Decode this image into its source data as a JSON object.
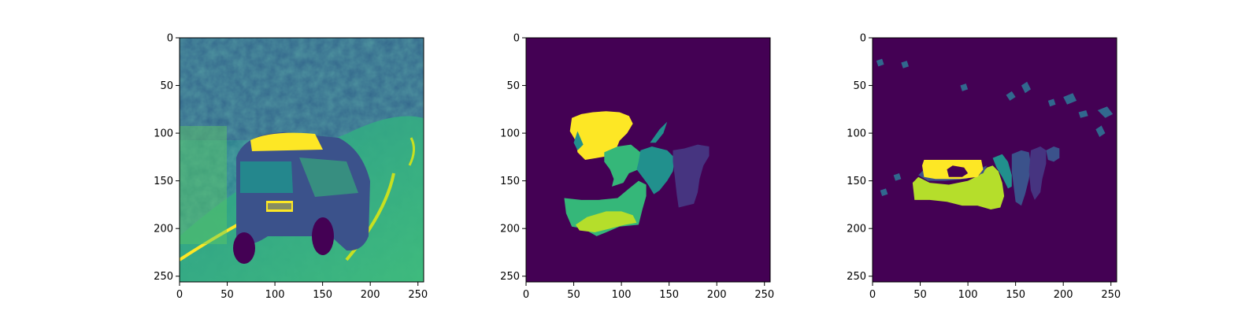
{
  "figure": {
    "background": "#ffffff",
    "colormap": "viridis",
    "colors": {
      "dark_purple": "#440154",
      "indigo": "#3b528b",
      "purple_blue": "#463480",
      "blue": "#31688e",
      "teal": "#21908d",
      "green": "#35b779",
      "light_green": "#90d743",
      "yellow_green": "#b5de2b",
      "yellow": "#fde725"
    }
  },
  "chart_data": [
    {
      "type": "heatmap",
      "name": "grayscale-car-image",
      "content": "viridis-colored grayscale photo of a car on a curving road",
      "xlim": [
        0,
        256
      ],
      "ylim": [
        256,
        0
      ],
      "xticks": [
        0,
        50,
        100,
        150,
        200,
        250
      ],
      "yticks": [
        0,
        50,
        100,
        150,
        200,
        250
      ],
      "xtick_labels": [
        "0",
        "50",
        "100",
        "150",
        "200",
        "250"
      ],
      "ytick_labels": [
        "0",
        "50",
        "100",
        "150",
        "200",
        "250"
      ],
      "title": "",
      "xlabel": "",
      "ylabel": "",
      "grid": false
    },
    {
      "type": "heatmap",
      "name": "segmentation-mask-a",
      "content": "label map with several colored segments on dark purple background",
      "xlim": [
        0,
        256
      ],
      "ylim": [
        256,
        0
      ],
      "xticks": [
        0,
        50,
        100,
        150,
        200,
        250
      ],
      "yticks": [
        0,
        50,
        100,
        150,
        200,
        250
      ],
      "xtick_labels": [
        "0",
        "50",
        "100",
        "150",
        "200",
        "250"
      ],
      "ytick_labels": [
        "0",
        "50",
        "100",
        "150",
        "200",
        "250"
      ],
      "title": "",
      "xlabel": "",
      "ylabel": "",
      "grid": false,
      "segments": [
        {
          "color": "#fde725",
          "points": [
            [
              48,
              84
            ],
            [
              58,
              80
            ],
            [
              70,
              78
            ],
            [
              84,
              77
            ],
            [
              98,
              78
            ],
            [
              108,
              82
            ],
            [
              112,
              90
            ],
            [
              106,
              100
            ],
            [
              98,
              108
            ],
            [
              94,
              118
            ],
            [
              86,
              124
            ],
            [
              74,
              126
            ],
            [
              62,
              128
            ],
            [
              54,
              120
            ],
            [
              52,
              108
            ],
            [
              46,
              98
            ]
          ]
        },
        {
          "color": "#21908d",
          "points": [
            [
              54,
              98
            ],
            [
              50,
              110
            ],
            [
              54,
              118
            ],
            [
              60,
              112
            ]
          ]
        },
        {
          "color": "#35b779",
          "points": [
            [
              82,
              120
            ],
            [
              96,
              114
            ],
            [
              110,
              112
            ],
            [
              120,
              120
            ],
            [
              124,
              130
            ],
            [
              118,
              138
            ],
            [
              108,
              142
            ],
            [
              102,
              152
            ],
            [
              90,
              156
            ],
            [
              92,
              148
            ],
            [
              88,
              138
            ],
            [
              82,
              130
            ]
          ]
        },
        {
          "color": "#21908d",
          "points": [
            [
              120,
              118
            ],
            [
              132,
              114
            ],
            [
              148,
              118
            ],
            [
              156,
              126
            ],
            [
              154,
              140
            ],
            [
              148,
              150
            ],
            [
              140,
              160
            ],
            [
              134,
              164
            ],
            [
              128,
              154
            ],
            [
              122,
              146
            ],
            [
              116,
              138
            ],
            [
              118,
              130
            ]
          ]
        },
        {
          "color": "#463480",
          "points": [
            [
              154,
              118
            ],
            [
              166,
              116
            ],
            [
              180,
              112
            ],
            [
              192,
              114
            ],
            [
              192,
              124
            ],
            [
              186,
              134
            ],
            [
              182,
              148
            ],
            [
              180,
              162
            ],
            [
              176,
              174
            ],
            [
              168,
              176
            ],
            [
              160,
              178
            ],
            [
              158,
              164
            ],
            [
              156,
              146
            ],
            [
              154,
              130
            ]
          ]
        },
        {
          "color": "#35b779",
          "points": [
            [
              40,
              168
            ],
            [
              58,
              170
            ],
            [
              76,
              170
            ],
            [
              96,
              168
            ],
            [
              108,
              158
            ],
            [
              118,
              150
            ],
            [
              126,
              154
            ],
            [
              126,
              166
            ],
            [
              122,
              180
            ],
            [
              118,
              196
            ],
            [
              98,
              198
            ],
            [
              84,
              204
            ],
            [
              74,
              208
            ],
            [
              60,
              200
            ],
            [
              48,
              198
            ],
            [
              42,
              184
            ]
          ]
        },
        {
          "color": "#b5de2b",
          "points": [
            [
              52,
              196
            ],
            [
              64,
              188
            ],
            [
              84,
              182
            ],
            [
              100,
              182
            ],
            [
              112,
              186
            ],
            [
              116,
              194
            ],
            [
              104,
              196
            ],
            [
              88,
              200
            ],
            [
              72,
              204
            ],
            [
              56,
              202
            ]
          ]
        },
        {
          "color": "#21908d",
          "points": [
            [
              130,
              110
            ],
            [
              140,
              96
            ],
            [
              148,
              88
            ],
            [
              144,
              100
            ],
            [
              136,
              110
            ]
          ]
        }
      ]
    },
    {
      "type": "heatmap",
      "name": "segmentation-mask-b",
      "content": "label map with yellow, green and blue segments plus scattered small blobs",
      "xlim": [
        0,
        256
      ],
      "ylim": [
        256,
        0
      ],
      "xticks": [
        0,
        50,
        100,
        150,
        200,
        250
      ],
      "yticks": [
        0,
        50,
        100,
        150,
        200,
        250
      ],
      "xtick_labels": [
        "0",
        "50",
        "100",
        "150",
        "200",
        "250"
      ],
      "ytick_labels": [
        "0",
        "50",
        "100",
        "150",
        "200",
        "250"
      ],
      "title": "",
      "xlabel": "",
      "ylabel": "",
      "grid": false,
      "segments": [
        {
          "color": "#b5de2b",
          "points": [
            [
              42,
              152
            ],
            [
              48,
              146
            ],
            [
              60,
              152
            ],
            [
              80,
              154
            ],
            [
              100,
              150
            ],
            [
              112,
              144
            ],
            [
              120,
              136
            ],
            [
              126,
              134
            ],
            [
              132,
              140
            ],
            [
              136,
              152
            ],
            [
              138,
              166
            ],
            [
              134,
              178
            ],
            [
              124,
              180
            ],
            [
              110,
              176
            ],
            [
              94,
              176
            ],
            [
              78,
              172
            ],
            [
              60,
              170
            ],
            [
              44,
              170
            ]
          ]
        },
        {
          "color": "#3b528b",
          "points": [
            [
              48,
              144
            ],
            [
              54,
              138
            ],
            [
              66,
              140
            ],
            [
              90,
              142
            ],
            [
              110,
              138
            ],
            [
              120,
              134
            ],
            [
              116,
              142
            ],
            [
              98,
              148
            ],
            [
              76,
              150
            ],
            [
              58,
              150
            ]
          ]
        },
        {
          "color": "#fde725",
          "points": [
            [
              52,
              134
            ],
            [
              54,
              128
            ],
            [
              70,
              128
            ],
            [
              100,
              128
            ],
            [
              114,
              128
            ],
            [
              116,
              138
            ],
            [
              110,
              146
            ],
            [
              92,
              148
            ],
            [
              66,
              148
            ],
            [
              54,
              146
            ]
          ]
        },
        {
          "color": "#440154",
          "points": [
            [
              78,
              138
            ],
            [
              84,
              134
            ],
            [
              96,
              136
            ],
            [
              100,
              142
            ],
            [
              94,
              146
            ],
            [
              80,
              146
            ]
          ]
        },
        {
          "color": "#21908d",
          "points": [
            [
              126,
              126
            ],
            [
              136,
              122
            ],
            [
              142,
              130
            ],
            [
              146,
              144
            ],
            [
              146,
              156
            ],
            [
              142,
              158
            ],
            [
              136,
              146
            ],
            [
              130,
              136
            ]
          ]
        },
        {
          "color": "#3b528b",
          "points": [
            [
              146,
              122
            ],
            [
              156,
              118
            ],
            [
              164,
              120
            ],
            [
              166,
              132
            ],
            [
              164,
              148
            ],
            [
              160,
              164
            ],
            [
              156,
              176
            ],
            [
              150,
              172
            ],
            [
              148,
              156
            ],
            [
              146,
              140
            ]
          ]
        },
        {
          "color": "#463480",
          "points": [
            [
              166,
              118
            ],
            [
              176,
              114
            ],
            [
              182,
              118
            ],
            [
              182,
              132
            ],
            [
              178,
              148
            ],
            [
              176,
              162
            ],
            [
              170,
              170
            ],
            [
              166,
              160
            ],
            [
              164,
              140
            ]
          ]
        },
        {
          "color": "#3b528b",
          "points": [
            [
              182,
              118
            ],
            [
              190,
              114
            ],
            [
              196,
              116
            ],
            [
              196,
              126
            ],
            [
              190,
              130
            ],
            [
              184,
              128
            ]
          ]
        },
        {
          "color": "#31688e",
          "points": [
            [
              156,
              50
            ],
            [
              162,
              46
            ],
            [
              166,
              54
            ],
            [
              160,
              58
            ]
          ]
        },
        {
          "color": "#31688e",
          "points": [
            [
              234,
              96
            ],
            [
              240,
              92
            ],
            [
              244,
              100
            ],
            [
              238,
              104
            ]
          ]
        },
        {
          "color": "#31688e",
          "points": [
            [
              236,
              76
            ],
            [
              246,
              72
            ],
            [
              252,
              80
            ],
            [
              244,
              84
            ]
          ]
        },
        {
          "color": "#31688e",
          "points": [
            [
              200,
              62
            ],
            [
              210,
              58
            ],
            [
              214,
              66
            ],
            [
              204,
              70
            ]
          ]
        },
        {
          "color": "#31688e",
          "points": [
            [
              92,
              50
            ],
            [
              98,
              48
            ],
            [
              100,
              54
            ],
            [
              94,
              56
            ]
          ]
        },
        {
          "color": "#31688e",
          "points": [
            [
              140,
              60
            ],
            [
              146,
              56
            ],
            [
              150,
              62
            ],
            [
              144,
              66
            ]
          ]
        },
        {
          "color": "#31688e",
          "points": [
            [
              216,
              78
            ],
            [
              224,
              76
            ],
            [
              226,
              82
            ],
            [
              218,
              84
            ]
          ]
        },
        {
          "color": "#31688e",
          "points": [
            [
              22,
              144
            ],
            [
              28,
              142
            ],
            [
              30,
              148
            ],
            [
              24,
              150
            ]
          ]
        },
        {
          "color": "#31688e",
          "points": [
            [
              8,
              160
            ],
            [
              14,
              158
            ],
            [
              16,
              164
            ],
            [
              10,
              166
            ]
          ]
        },
        {
          "color": "#31688e",
          "points": [
            [
              4,
              24
            ],
            [
              10,
              22
            ],
            [
              12,
              28
            ],
            [
              6,
              30
            ]
          ]
        },
        {
          "color": "#31688e",
          "points": [
            [
              30,
              26
            ],
            [
              36,
              24
            ],
            [
              38,
              30
            ],
            [
              32,
              32
            ]
          ]
        },
        {
          "color": "#31688e",
          "points": [
            [
              184,
              66
            ],
            [
              190,
              64
            ],
            [
              192,
              70
            ],
            [
              186,
              72
            ]
          ]
        }
      ]
    }
  ]
}
